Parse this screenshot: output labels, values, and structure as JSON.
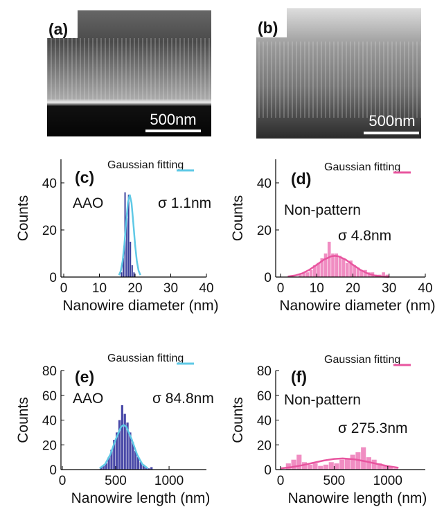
{
  "images": [
    {
      "label": "(a)",
      "scale_bar": "500nm"
    },
    {
      "label": "(b)",
      "scale_bar": "500nm"
    }
  ],
  "chart_data": [
    {
      "type": "histogram",
      "panel_label": "(c)",
      "sample_label": "AAO",
      "sigma_label": "σ 1.1nm",
      "x_label": "Nanowire diameter (nm)",
      "y_label": "Counts",
      "color": "#3a3f9c",
      "bins": [
        16,
        16.5,
        17,
        17.5,
        18,
        18.5,
        19,
        19.5,
        20
      ],
      "values": [
        2,
        8,
        36,
        25,
        35,
        15,
        5,
        2
      ],
      "series": [
        {
          "name": "Gaussian fitting",
          "color": "#5fc9e6",
          "x": [
            15.5,
            16,
            16.5,
            17,
            17.5,
            18,
            18.5,
            19,
            19.5,
            20,
            20.5,
            21,
            21.5
          ],
          "values": [
            0.85,
            2.6,
            6.7,
            13.8,
            23.1,
            31.6,
            35,
            31.6,
            23.1,
            13.8,
            6.7,
            2.6,
            0.85
          ]
        }
      ],
      "xlim": [
        0,
        40
      ],
      "xticks": [
        0,
        10,
        20,
        30,
        40
      ],
      "ylim": [
        0,
        50
      ],
      "yticks": [
        0,
        20,
        40
      ]
    },
    {
      "type": "histogram",
      "panel_label": "(d)",
      "sample_label": "Non-pattern",
      "sigma_label": "σ 4.8nm",
      "x_label": "Nanowire diameter (nm)",
      "y_label": "Counts",
      "color": "#f08dc2",
      "bins": [
        5,
        6,
        7,
        8,
        9,
        10,
        11,
        12,
        13,
        14,
        15,
        16,
        17,
        18,
        19,
        20,
        21,
        22,
        23,
        24,
        25,
        26,
        27,
        28,
        29,
        30
      ],
      "values": [
        1,
        2,
        2,
        3,
        5,
        6,
        8,
        10,
        15,
        10,
        10,
        9,
        8,
        6,
        7,
        5,
        4,
        3,
        3,
        2,
        2,
        1,
        1,
        2,
        1
      ],
      "series": [
        {
          "name": "Gaussian fitting",
          "color": "#e8559f",
          "x": [
            2,
            4,
            6,
            8,
            10,
            12,
            14,
            15,
            16,
            18,
            20,
            22,
            24,
            26,
            28,
            30
          ],
          "values": [
            0.23,
            0.65,
            1.55,
            3.1,
            5.2,
            7.4,
            8.8,
            9,
            8.8,
            7.4,
            5.2,
            3.1,
            1.55,
            0.65,
            0.23,
            0.07
          ]
        }
      ],
      "xlim": [
        0,
        40
      ],
      "xticks": [
        0,
        10,
        20,
        30,
        40
      ],
      "ylim": [
        0,
        50
      ],
      "yticks": [
        0,
        20,
        40
      ]
    },
    {
      "type": "histogram",
      "panel_label": "(e)",
      "sample_label": "AAO",
      "sigma_label": "σ 84.8nm",
      "x_label": "Nanowire length (nm)",
      "y_label": "Counts",
      "color": "#4a4aa8",
      "bins": [
        350,
        375,
        400,
        425,
        450,
        475,
        500,
        525,
        550,
        575,
        600,
        625,
        650,
        675,
        700,
        725,
        750,
        775,
        800,
        825,
        850
      ],
      "values": [
        2,
        3,
        5,
        10,
        16,
        24,
        30,
        40,
        52,
        45,
        38,
        30,
        22,
        15,
        10,
        6,
        4,
        2,
        1,
        2
      ],
      "series": [
        {
          "name": "Gaussian fitting",
          "color": "#5fc9e6",
          "x": [
            350,
            400,
            450,
            500,
            550,
            575,
            600,
            650,
            700,
            750,
            800
          ],
          "values": [
            1.08,
            4.3,
            12.2,
            24.4,
            34.5,
            36,
            34.5,
            24.4,
            12.2,
            4.3,
            1.08
          ]
        }
      ],
      "xlim": [
        0,
        1350
      ],
      "xticks": [
        0,
        500,
        1000
      ],
      "ylim": [
        0,
        80
      ],
      "yticks": [
        0,
        20,
        40,
        60,
        80
      ]
    },
    {
      "type": "histogram",
      "panel_label": "(f)",
      "sample_label": "Non-pattern",
      "sigma_label": "σ 275.3nm",
      "x_label": "Nanowire length (nm)",
      "y_label": "Counts",
      "color": "#f08dc2",
      "bins": [
        50,
        100,
        150,
        200,
        250,
        300,
        350,
        400,
        450,
        500,
        550,
        600,
        650,
        700,
        750,
        800,
        850,
        900,
        950,
        1000,
        1050,
        1100
      ],
      "values": [
        5,
        8,
        12,
        6,
        4,
        5,
        3,
        4,
        6,
        5,
        8,
        9,
        12,
        14,
        18,
        10,
        8,
        5,
        3,
        2,
        1
      ],
      "series": [
        {
          "name": "Gaussian fitting",
          "color": "#e8559f",
          "x": [
            0,
            100,
            200,
            300,
            400,
            500,
            580,
            700,
            800,
            900,
            1000,
            1100
          ],
          "values": [
            0.98,
            1.97,
            3.46,
            5.37,
            7.26,
            8.6,
            9,
            8.2,
            6.5,
            4.6,
            2.8,
            1.5
          ]
        }
      ],
      "xlim": [
        0,
        1350
      ],
      "xticks": [
        0,
        500,
        1000
      ],
      "ylim": [
        0,
        80
      ],
      "yticks": [
        0,
        20,
        40,
        60,
        80
      ]
    }
  ]
}
